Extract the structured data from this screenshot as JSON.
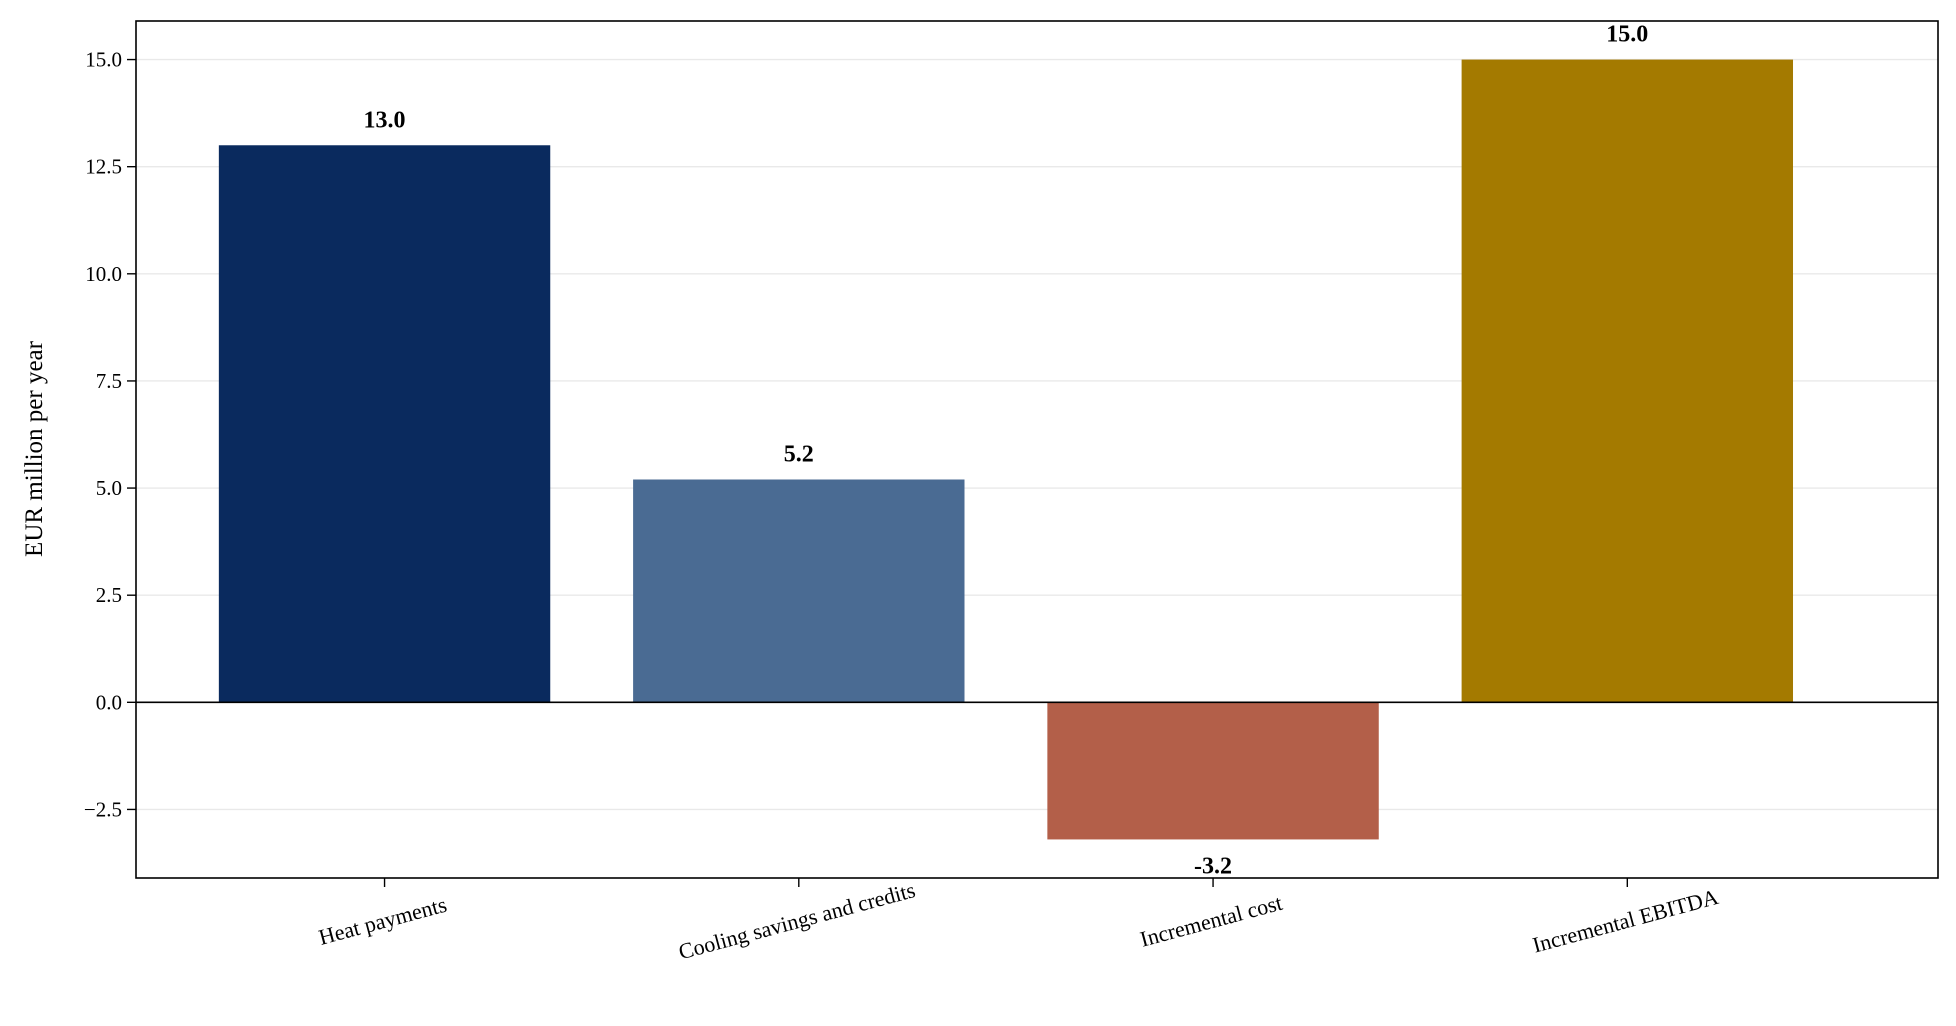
{
  "chart_data": {
    "type": "bar",
    "categories": [
      "Heat payments",
      "Cooling savings and credits",
      "Incremental cost",
      "Incremental EBITDA"
    ],
    "values": [
      13.0,
      5.2,
      -3.2,
      15.0
    ],
    "value_labels": [
      "13.0",
      "5.2",
      "-3.2",
      "15.0"
    ],
    "colors": [
      "#0a2a5e",
      "#4a6b93",
      "#b35f49",
      "#a47a00"
    ],
    "title": "",
    "xlabel": "",
    "ylabel": "EUR million per year",
    "ylim": [
      -4.1,
      15.9
    ],
    "yticks": [
      -2.5,
      0.0,
      2.5,
      5.0,
      7.5,
      10.0,
      12.5,
      15.0
    ],
    "ytick_labels": [
      "−2.5",
      "0.0",
      "2.5",
      "5.0",
      "7.5",
      "10.0",
      "12.5",
      "15.0"
    ],
    "grid": "horizontal",
    "zero_line": true,
    "legend": "none"
  }
}
